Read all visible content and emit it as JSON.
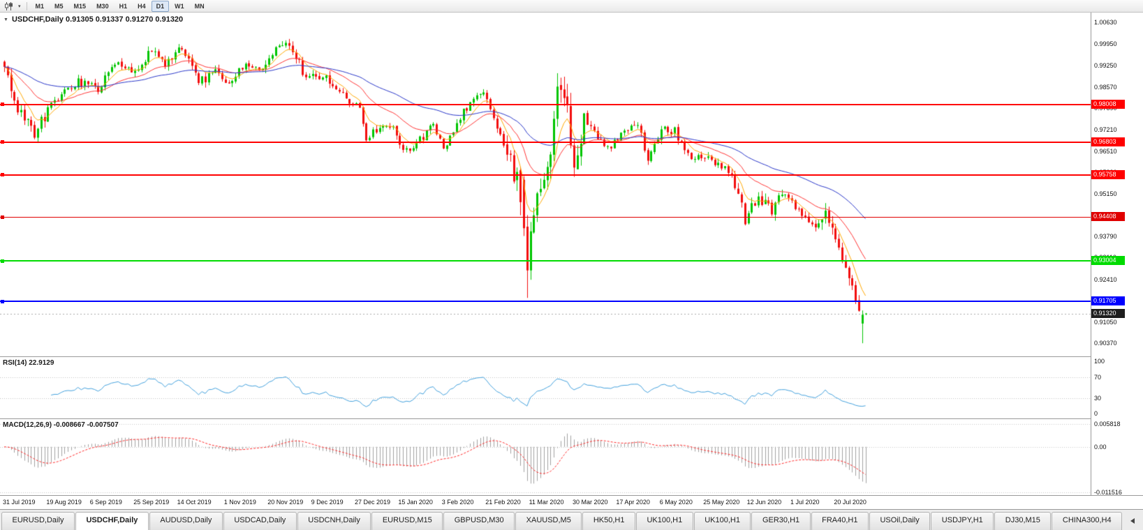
{
  "icons": {
    "collapse": "▼",
    "caret": "▾"
  },
  "toolbar": {
    "timeframes": [
      "M1",
      "M5",
      "M15",
      "M30",
      "H1",
      "H4",
      "D1",
      "W1",
      "MN"
    ],
    "active_timeframe": "D1"
  },
  "chart": {
    "title_text": "USDCHF,Daily  0.91305 0.91337 0.91270 0.91320",
    "symbol": "USDCHF",
    "period": "Daily",
    "open": "0.91305",
    "high": "0.91337",
    "low": "0.91270",
    "close": "0.91320",
    "price_ticks": [
      1.0063,
      0.9995,
      0.9925,
      0.9857,
      0.9789,
      0.9721,
      0.9651,
      0.9583,
      0.9515,
      0.9447,
      0.9379,
      0.9311,
      0.9241,
      0.9173,
      0.9105,
      0.9037
    ],
    "levels": [
      {
        "value": 0.98008,
        "color": "#FF0000",
        "width": 2
      },
      {
        "value": 0.96803,
        "color": "#FF0000",
        "width": 2
      },
      {
        "value": 0.95758,
        "color": "#FF0000",
        "width": 2
      },
      {
        "value": 0.94408,
        "color": "#E00000",
        "width": 1
      },
      {
        "value": 0.93004,
        "color": "#00DB00",
        "width": 2
      },
      {
        "value": 0.91705,
        "color": "#0000FF",
        "width": 2
      }
    ],
    "current_price": {
      "value": 0.9132,
      "label": "0.91320",
      "label_bg": "#1E1E1E",
      "line_color": "#A8A8A8"
    }
  },
  "rsi": {
    "label": "RSI(14) 22.9129",
    "ticks": [
      100,
      70,
      30,
      0
    ],
    "levels": [
      70,
      30
    ],
    "color": "#42A0DC"
  },
  "macd": {
    "label": "MACD(12,26,9) -0.008667 -0.007507",
    "ticks": [
      {
        "v": 0.005818,
        "t": "0.005818"
      },
      {
        "v": 0,
        "t": "0.00"
      },
      {
        "v": -0.011516,
        "t": "-0.011516"
      }
    ],
    "hist_color": "#A0A0A0",
    "signal_color": "#FF2A2A"
  },
  "date_axis": {
    "labels": [
      [
        "31 Jul 2019",
        0
      ],
      [
        "19 Aug 2019",
        13
      ],
      [
        "6 Sep 2019",
        26
      ],
      [
        "25 Sep 2019",
        39
      ],
      [
        "14 Oct 2019",
        52
      ],
      [
        "1 Nov 2019",
        66
      ],
      [
        "20 Nov 2019",
        79
      ],
      [
        "9 Dec 2019",
        92
      ],
      [
        "27 Dec 2019",
        105
      ],
      [
        "15 Jan 2020",
        118
      ],
      [
        "3 Feb 2020",
        131
      ],
      [
        "21 Feb 2020",
        144
      ],
      [
        "11 Mar 2020",
        157
      ],
      [
        "30 Mar 2020",
        170
      ],
      [
        "17 Apr 2020",
        183
      ],
      [
        "6 May 2020",
        196
      ],
      [
        "25 May 2020",
        209
      ],
      [
        "12 Jun 2020",
        222
      ],
      [
        "1 Jul 2020",
        235
      ],
      [
        "20 Jul 2020",
        248
      ]
    ]
  },
  "tabs": {
    "items": [
      {
        "label": "EURUSD,Daily",
        "active": false
      },
      {
        "label": "USDCHF,Daily",
        "active": true
      },
      {
        "label": "AUDUSD,Daily",
        "active": false
      },
      {
        "label": "USDCAD,Daily",
        "active": false
      },
      {
        "label": "USDCNH,Daily",
        "active": false
      },
      {
        "label": "EURUSD,M15",
        "active": false
      },
      {
        "label": "GBPUSD,M30",
        "active": false
      },
      {
        "label": "XAUUSD,M5",
        "active": false
      },
      {
        "label": "HK50,H1",
        "active": false
      },
      {
        "label": "UK100,H1",
        "active": false
      },
      {
        "label": "UK100,H1",
        "active": false
      },
      {
        "label": "GER30,H1",
        "active": false
      },
      {
        "label": "FRA40,H1",
        "active": false
      },
      {
        "label": "USOil,Daily",
        "active": false
      },
      {
        "label": "USDJPY,H1",
        "active": false
      },
      {
        "label": "DJ30,M15",
        "active": false
      },
      {
        "label": "CHINA300,H4",
        "active": false
      }
    ]
  },
  "chart_data": {
    "type": "candlestick",
    "title": "USDCHF Daily candles with moving averages, RSI(14) and MACD(12,26,9)",
    "symbol": "USDCHF",
    "timeframe": "Daily",
    "ylim": [
      0.8995,
      1.0095
    ],
    "x_start": 6,
    "x_step": 4.8,
    "candle_width": 3,
    "num_candles": 258,
    "up_color": "#00C500",
    "down_color": "#F20D0D",
    "close_waypoints": [
      [
        0,
        0.9935
      ],
      [
        2,
        0.9825
      ],
      [
        9,
        0.971
      ],
      [
        14,
        0.98
      ],
      [
        22,
        0.9875
      ],
      [
        28,
        0.985
      ],
      [
        33,
        0.9935
      ],
      [
        40,
        0.99
      ],
      [
        44,
        0.998
      ],
      [
        48,
        0.993
      ],
      [
        53,
        0.9985
      ],
      [
        58,
        0.987
      ],
      [
        63,
        0.991
      ],
      [
        66,
        0.9865
      ],
      [
        72,
        0.9935
      ],
      [
        76,
        0.99
      ],
      [
        81,
        0.9975
      ],
      [
        84,
        0.999
      ],
      [
        88,
        0.9935
      ],
      [
        90,
        0.988
      ],
      [
        95,
        0.9895
      ],
      [
        101,
        0.983
      ],
      [
        106,
        0.9785
      ],
      [
        108,
        0.9685
      ],
      [
        111,
        0.972
      ],
      [
        116,
        0.9735
      ],
      [
        119,
        0.9645
      ],
      [
        123,
        0.9675
      ],
      [
        128,
        0.9735
      ],
      [
        131,
        0.966
      ],
      [
        137,
        0.9775
      ],
      [
        143,
        0.9845
      ],
      [
        145,
        0.978
      ],
      [
        150,
        0.9655
      ],
      [
        153,
        0.956
      ],
      [
        155,
        0.9405
      ],
      [
        156,
        0.927
      ],
      [
        157,
        0.9395
      ],
      [
        160,
        0.952
      ],
      [
        162,
        0.959
      ],
      [
        164,
        0.9755
      ],
      [
        165,
        0.9858
      ],
      [
        168,
        0.977
      ],
      [
        170,
        0.958
      ],
      [
        173,
        0.976
      ],
      [
        177,
        0.969
      ],
      [
        181,
        0.9665
      ],
      [
        185,
        0.9715
      ],
      [
        189,
        0.9745
      ],
      [
        192,
        0.9625
      ],
      [
        196,
        0.972
      ],
      [
        200,
        0.9715
      ],
      [
        204,
        0.964
      ],
      [
        209,
        0.963
      ],
      [
        213,
        0.9605
      ],
      [
        217,
        0.959
      ],
      [
        221,
        0.943
      ],
      [
        225,
        0.9505
      ],
      [
        229,
        0.9465
      ],
      [
        233,
        0.952
      ],
      [
        237,
        0.9455
      ],
      [
        241,
        0.9405
      ],
      [
        245,
        0.9455
      ],
      [
        247,
        0.9405
      ],
      [
        251,
        0.929
      ],
      [
        254,
        0.9185
      ],
      [
        255,
        0.915
      ],
      [
        256,
        0.9128
      ],
      [
        257,
        0.9132
      ]
    ],
    "volatility": {
      "base": 0.0016,
      "zones": [
        [
          0,
          12,
          1.6
        ],
        [
          44,
          60,
          1.2
        ],
        [
          150,
          172,
          3.0
        ],
        [
          217,
          232,
          1.5
        ],
        [
          244,
          255,
          1.7
        ]
      ]
    },
    "seed": 20200731,
    "forced_candles": {
      "155": [
        0.956,
        0.9572,
        0.938,
        0.9405
      ],
      "156": [
        0.941,
        0.9447,
        0.9182,
        0.927
      ],
      "157": [
        0.927,
        0.9425,
        0.924,
        0.9395
      ],
      "164": [
        0.964,
        0.978,
        0.962,
        0.9755
      ],
      "165": [
        0.9755,
        0.9901,
        0.973,
        0.9858
      ],
      "256": [
        0.91,
        0.9142,
        0.9037,
        0.9128
      ],
      "257": [
        0.91305,
        0.91337,
        0.9127,
        0.9132
      ]
    },
    "moving_averages": [
      {
        "type": "ema",
        "period": 7,
        "color": "#FFA800",
        "width": 1
      },
      {
        "type": "ema",
        "period": 21,
        "color": "#FF3333",
        "width": 1
      },
      {
        "type": "ema",
        "period": 55,
        "color": "#2936C8",
        "width": 1
      }
    ],
    "rsi": {
      "period": 14,
      "current": 22.9129,
      "ylim": [
        0,
        100
      ]
    },
    "macd": {
      "fast": 12,
      "slow": 26,
      "signal": 9,
      "main": -0.008667,
      "signal_value": -0.007507,
      "ylim": [
        -0.0122,
        0.007
      ]
    }
  }
}
